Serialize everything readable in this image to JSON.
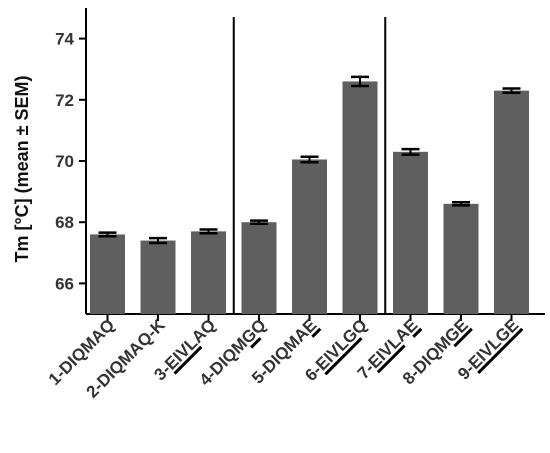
{
  "chart_data": {
    "type": "bar",
    "ylabel": "Tm [°C] (mean ± SEM)",
    "ylim": [
      65,
      75
    ],
    "yticks": [
      66,
      68,
      70,
      72,
      74
    ],
    "categories": [
      {
        "label": "1-DIQMAQ",
        "segments": [
          {
            "text": "1-DIQMAQ",
            "underline": false
          }
        ]
      },
      {
        "label": "2-DIQMAQ-K",
        "segments": [
          {
            "text": "2-DIQMAQ-K",
            "underline": false
          }
        ]
      },
      {
        "label": "3-EIVLAQ",
        "segments": [
          {
            "text": "3-",
            "underline": false
          },
          {
            "text": "EIVL",
            "underline": true
          },
          {
            "text": "AQ",
            "underline": false
          }
        ]
      },
      {
        "label": "4-DIQMGQ",
        "segments": [
          {
            "text": "4-DIQM",
            "underline": false
          },
          {
            "text": "G",
            "underline": true
          },
          {
            "text": "Q",
            "underline": false
          }
        ]
      },
      {
        "label": "5-DIQMAE",
        "segments": [
          {
            "text": "5-DIQMA",
            "underline": false
          },
          {
            "text": "E",
            "underline": true
          }
        ]
      },
      {
        "label": "6-EIVLGQ",
        "segments": [
          {
            "text": "6-",
            "underline": false
          },
          {
            "text": "EIVLG",
            "underline": true
          },
          {
            "text": "Q",
            "underline": false
          }
        ]
      },
      {
        "label": "7-EIVLAE",
        "segments": [
          {
            "text": "7-",
            "underline": false
          },
          {
            "text": "EIVL",
            "underline": true
          },
          {
            "text": "A",
            "underline": false
          },
          {
            "text": "E",
            "underline": true
          }
        ]
      },
      {
        "label": "8-DIQMGE",
        "segments": [
          {
            "text": "8-DIQM",
            "underline": false
          },
          {
            "text": "GE",
            "underline": true
          }
        ]
      },
      {
        "label": "9-EIVLGE",
        "segments": [
          {
            "text": "9-",
            "underline": false
          },
          {
            "text": "EIVLGE",
            "underline": true
          }
        ]
      }
    ],
    "values": [
      67.6,
      67.4,
      67.7,
      68.0,
      70.05,
      72.6,
      70.3,
      68.6,
      72.3
    ],
    "sem": [
      0.06,
      0.08,
      0.06,
      0.05,
      0.09,
      0.15,
      0.09,
      0.05,
      0.07
    ],
    "separators_after_index": [
      2,
      5
    ],
    "bar_color": "#5f5f5f",
    "grid": false,
    "legend": "none"
  }
}
